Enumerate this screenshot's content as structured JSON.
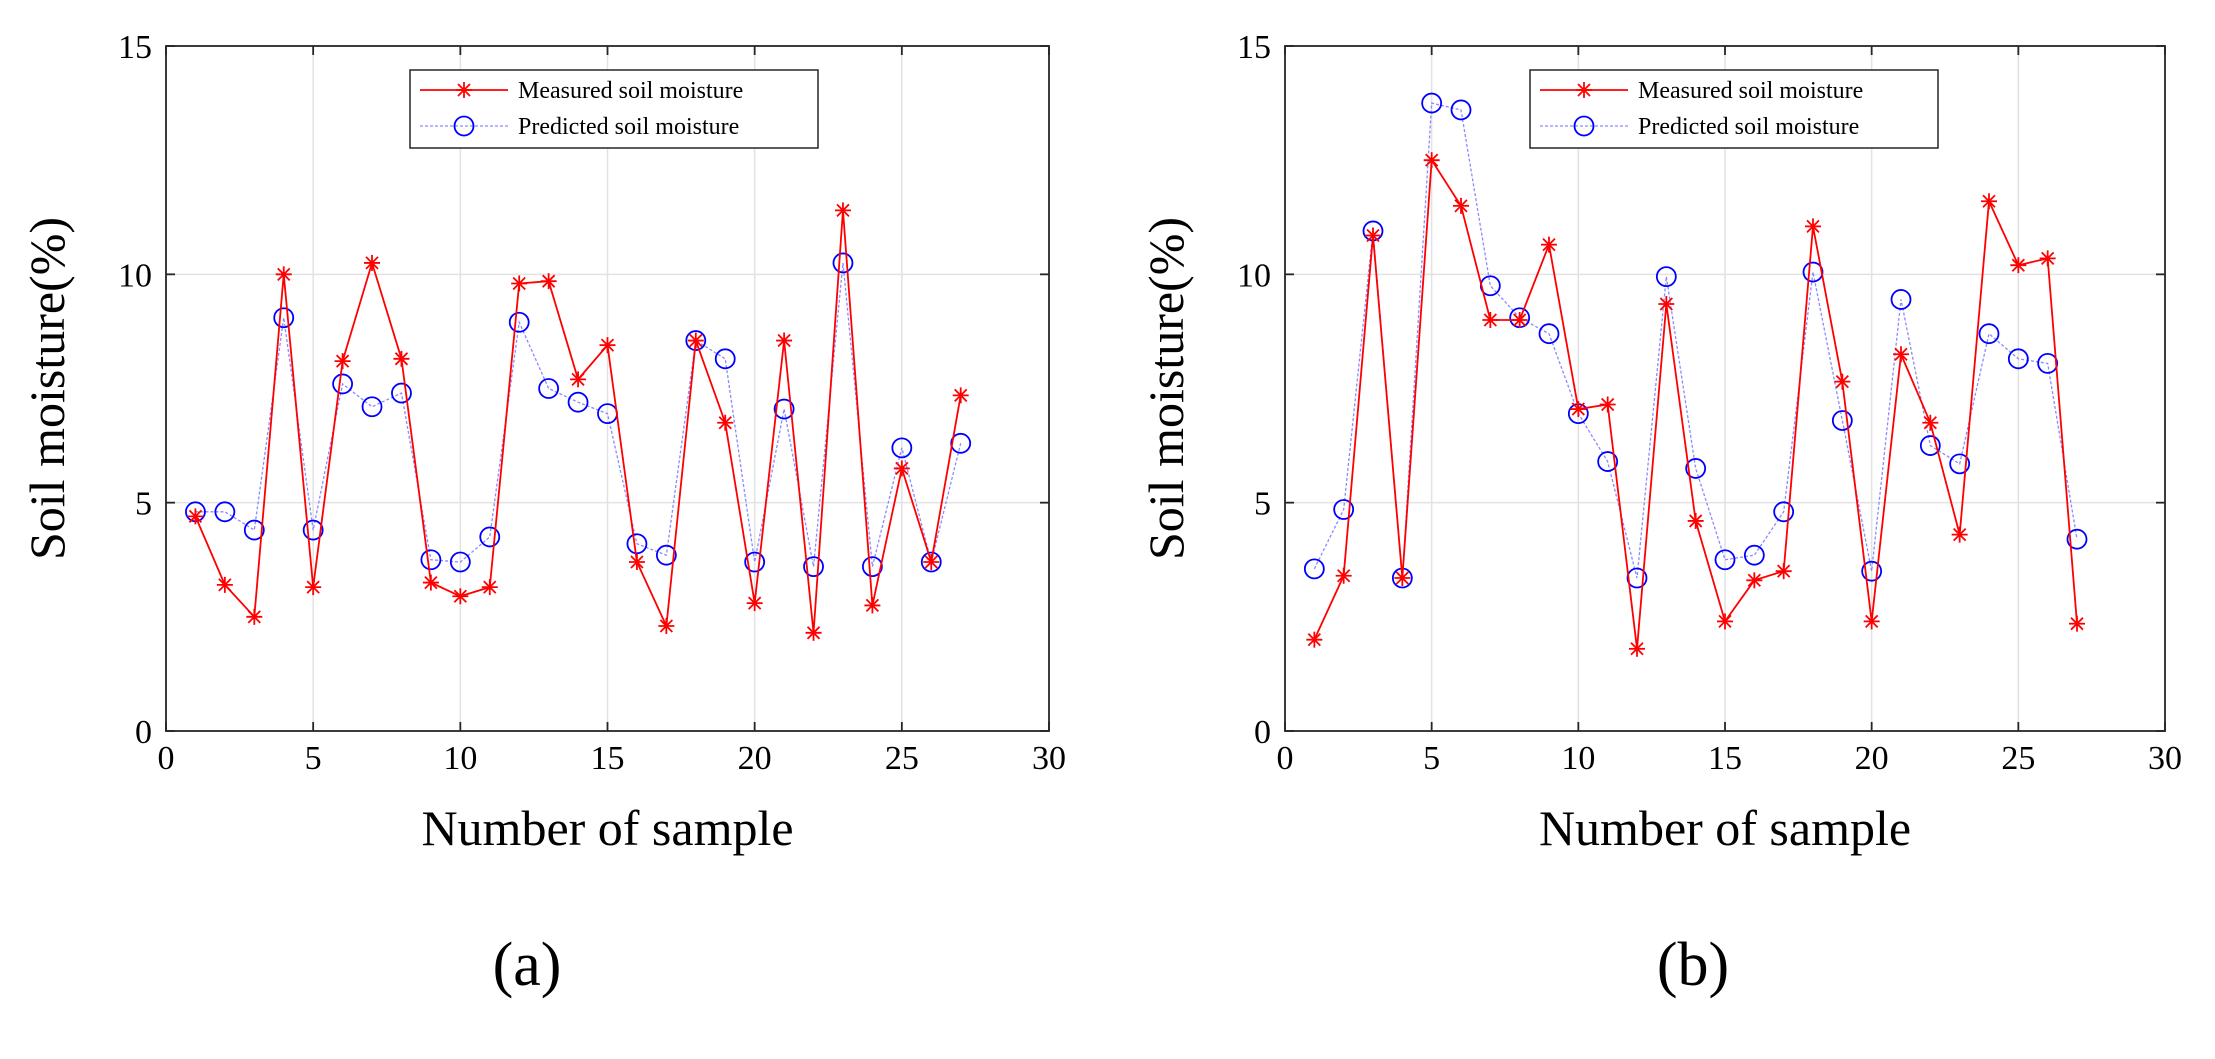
{
  "figure": {
    "panel_labels": [
      "(a)",
      "(b)"
    ]
  },
  "chart_data": [
    {
      "type": "line",
      "panel": "(a)",
      "title": "",
      "xlabel": "Number of sample",
      "ylabel": "Soil moisture(%)",
      "xlim": [
        0,
        30
      ],
      "ylim": [
        0,
        15
      ],
      "xticks": [
        0,
        5,
        10,
        15,
        20,
        25,
        30
      ],
      "yticks": [
        0,
        5,
        10,
        15
      ],
      "grid": true,
      "legend_position": "top-center",
      "x": [
        1,
        2,
        3,
        4,
        5,
        6,
        7,
        8,
        9,
        10,
        11,
        12,
        13,
        14,
        15,
        16,
        17,
        18,
        19,
        20,
        21,
        22,
        23,
        24,
        25,
        26,
        27
      ],
      "series": [
        {
          "name": "Measured soil moisture",
          "color": "#ff0000",
          "marker": "asterisk",
          "values": [
            4.7,
            3.2,
            2.5,
            10.0,
            3.15,
            8.1,
            10.25,
            8.15,
            3.25,
            2.95,
            3.15,
            9.8,
            9.85,
            7.7,
            8.45,
            3.7,
            2.3,
            8.55,
            6.75,
            2.8,
            8.55,
            2.15,
            11.4,
            2.75,
            5.75,
            3.7,
            7.35
          ]
        },
        {
          "name": "Predicted soil moisture",
          "color": "#0000ff",
          "marker": "circle",
          "values": [
            4.8,
            4.8,
            4.4,
            9.05,
            4.4,
            7.6,
            7.1,
            7.4,
            3.75,
            3.7,
            4.25,
            8.95,
            7.5,
            7.2,
            6.95,
            4.1,
            3.85,
            8.55,
            8.15,
            3.7,
            7.05,
            3.6,
            10.25,
            3.6,
            6.2,
            3.7,
            6.3
          ]
        }
      ]
    },
    {
      "type": "line",
      "panel": "(b)",
      "title": "",
      "xlabel": "Number of sample",
      "ylabel": "Soil moisture(%)",
      "xlim": [
        0,
        30
      ],
      "ylim": [
        0,
        15
      ],
      "xticks": [
        0,
        5,
        10,
        15,
        20,
        25,
        30
      ],
      "yticks": [
        0,
        5,
        10,
        15
      ],
      "grid": true,
      "legend_position": "top-center",
      "x": [
        1,
        2,
        3,
        4,
        5,
        6,
        7,
        8,
        9,
        10,
        11,
        12,
        13,
        14,
        15,
        16,
        17,
        18,
        19,
        20,
        21,
        22,
        23,
        24,
        25,
        26,
        27
      ],
      "series": [
        {
          "name": "Measured soil moisture",
          "color": "#ff0000",
          "marker": "asterisk",
          "values": [
            2.0,
            3.4,
            10.85,
            3.35,
            12.5,
            11.5,
            9.0,
            9.0,
            10.65,
            7.05,
            7.15,
            1.8,
            9.35,
            4.6,
            2.4,
            3.3,
            3.5,
            11.05,
            7.65,
            2.4,
            8.25,
            6.75,
            4.3,
            11.6,
            10.2,
            10.35,
            2.35
          ]
        },
        {
          "name": "Predicted soil moisture",
          "color": "#0000ff",
          "marker": "circle",
          "values": [
            3.55,
            4.85,
            10.95,
            3.35,
            13.75,
            13.6,
            9.75,
            9.05,
            8.7,
            6.95,
            5.9,
            3.35,
            9.95,
            5.75,
            3.75,
            3.85,
            4.8,
            10.05,
            6.8,
            3.5,
            9.45,
            6.25,
            5.85,
            8.7,
            8.15,
            8.05,
            4.2
          ]
        }
      ]
    }
  ]
}
